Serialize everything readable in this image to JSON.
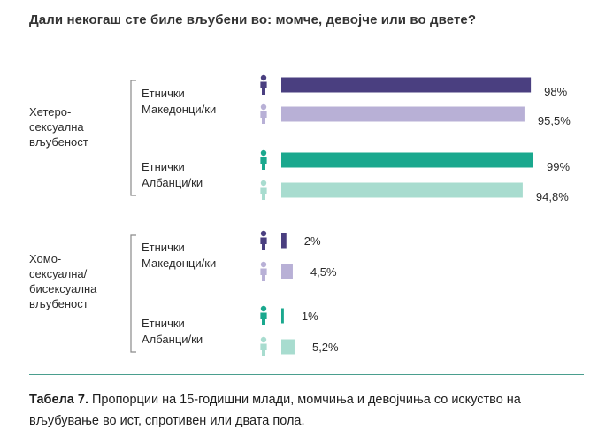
{
  "title": "Дали некогаш сте биле вљубени во: момче, девојче или во двете?",
  "caption": {
    "label": "Табела 7.",
    "text": " Пропорции на 15-годишни млади, момчиња и девојчиња со искуство на вљубување во ист, спротивен или двата пола."
  },
  "colors": {
    "mk_boy": "#4a3f80",
    "mk_girl": "#b8b0d6",
    "al_boy": "#1aa88e",
    "al_girl": "#a8dccf"
  },
  "chart_data": {
    "type": "bar",
    "orientation": "horizontal",
    "xlim": [
      0,
      100
    ],
    "unit": "%",
    "groups": [
      {
        "label": [
          "Хетеро-",
          "сексуална",
          "вљубеност"
        ],
        "subgroups": [
          {
            "label": [
              "Етнички",
              "Македонци/ки"
            ],
            "bars": [
              {
                "gender": "male",
                "value": 98,
                "label": "98%",
                "color": "#4a3f80"
              },
              {
                "gender": "female",
                "value": 95.5,
                "label": "95,5%",
                "color": "#b8b0d6"
              }
            ]
          },
          {
            "label": [
              "Етнички",
              "Албанци/ки"
            ],
            "bars": [
              {
                "gender": "male",
                "value": 99,
                "label": "99%",
                "color": "#1aa88e"
              },
              {
                "gender": "female",
                "value": 94.8,
                "label": "94,8%",
                "color": "#a8dccf"
              }
            ]
          }
        ]
      },
      {
        "label": [
          "Хомо-",
          "сексуална/",
          "бисексуална",
          "вљубеност"
        ],
        "subgroups": [
          {
            "label": [
              "Етнички",
              "Македонци/ки"
            ],
            "bars": [
              {
                "gender": "male",
                "value": 2,
                "label": "2%",
                "color": "#4a3f80"
              },
              {
                "gender": "female",
                "value": 4.5,
                "label": "4,5%",
                "color": "#b8b0d6"
              }
            ]
          },
          {
            "label": [
              "Етнички",
              "Албанци/ки"
            ],
            "bars": [
              {
                "gender": "male",
                "value": 1,
                "label": "1%",
                "color": "#1aa88e"
              },
              {
                "gender": "female",
                "value": 5.2,
                "label": "5,2%",
                "color": "#a8dccf"
              }
            ]
          }
        ]
      }
    ]
  }
}
